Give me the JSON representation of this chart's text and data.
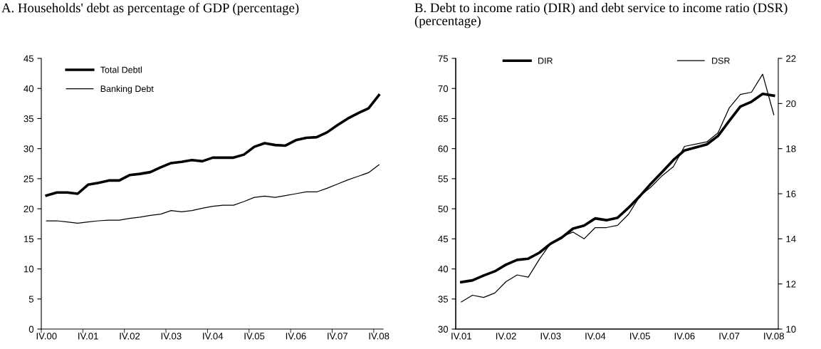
{
  "chart_data": [
    {
      "type": "line",
      "title": "A. Households' debt as percentage of GDP (percentage)",
      "categories": [
        "IV.00",
        null,
        null,
        null,
        "IV.01",
        null,
        null,
        null,
        "IV.02",
        null,
        null,
        null,
        "IV.03",
        null,
        null,
        null,
        "IV.04",
        null,
        null,
        null,
        "IV.05",
        null,
        null,
        null,
        "IV.06",
        null,
        null,
        null,
        "IV.07",
        null,
        null,
        null,
        "IV.08"
      ],
      "ylim": [
        0,
        45
      ],
      "yticks": [
        0,
        5,
        10,
        15,
        20,
        25,
        30,
        35,
        40,
        45
      ],
      "grid": false,
      "legend": "top left",
      "series": [
        {
          "name": "Total Debtl",
          "color": "#000000",
          "values": [
            22.2,
            22.7,
            22.7,
            22.5,
            24.0,
            24.3,
            24.7,
            24.7,
            25.6,
            25.8,
            26.1,
            26.9,
            27.6,
            27.8,
            28.1,
            27.9,
            28.5,
            28.5,
            28.5,
            29.0,
            30.3,
            30.9,
            30.6,
            30.5,
            31.4,
            31.8,
            31.9,
            32.7,
            33.9,
            35.0,
            35.9,
            36.7,
            38.9
          ]
        },
        {
          "name": "Banking Debt",
          "color": "#000000",
          "values": [
            18.0,
            18.0,
            17.8,
            17.6,
            17.8,
            18.0,
            18.1,
            18.1,
            18.4,
            18.6,
            18.9,
            19.1,
            19.7,
            19.5,
            19.7,
            20.1,
            20.4,
            20.6,
            20.6,
            21.2,
            21.9,
            22.1,
            21.9,
            22.2,
            22.5,
            22.8,
            22.8,
            23.4,
            24.1,
            24.8,
            25.4,
            26.0,
            27.3
          ]
        }
      ]
    },
    {
      "type": "line",
      "title": "B. Debt to income ratio (DIR) and debt service to income ratio (DSR) (percentage)",
      "categories": [
        "IV.01",
        null,
        null,
        null,
        "IV.02",
        null,
        null,
        null,
        "IV.03",
        null,
        null,
        null,
        "IV.04",
        null,
        null,
        null,
        "IV.05",
        null,
        null,
        null,
        "IV.06",
        null,
        null,
        null,
        "IV.07",
        null,
        null,
        null,
        "IV.08"
      ],
      "ylim": [
        30,
        75
      ],
      "yticks": [
        30,
        35,
        40,
        45,
        50,
        55,
        60,
        65,
        70,
        75
      ],
      "y2lim": [
        10,
        22
      ],
      "y2ticks": [
        10,
        12,
        14,
        16,
        18,
        20,
        22
      ],
      "grid": false,
      "legend": "top",
      "series": [
        {
          "name": "DIR",
          "color": "#000000",
          "values": [
            37.8,
            38.1,
            38.9,
            39.6,
            40.7,
            41.5,
            41.7,
            42.7,
            44.2,
            45.2,
            46.7,
            47.2,
            48.4,
            48.1,
            48.5,
            50.2,
            52.1,
            54.2,
            56.1,
            58.1,
            59.7,
            60.2,
            60.7,
            62.1,
            64.6,
            67.0,
            67.8,
            69.1,
            68.8
          ]
        },
        {
          "name": "DSR",
          "color": "#000000",
          "axis": "y2",
          "values": [
            11.2,
            11.5,
            11.4,
            11.6,
            12.1,
            12.4,
            12.3,
            13.1,
            13.8,
            14.1,
            14.3,
            14.0,
            14.5,
            14.5,
            14.6,
            15.1,
            15.9,
            16.3,
            16.8,
            17.2,
            18.1,
            18.2,
            18.3,
            18.7,
            19.8,
            20.4,
            20.5,
            21.3,
            19.5
          ]
        }
      ]
    }
  ]
}
